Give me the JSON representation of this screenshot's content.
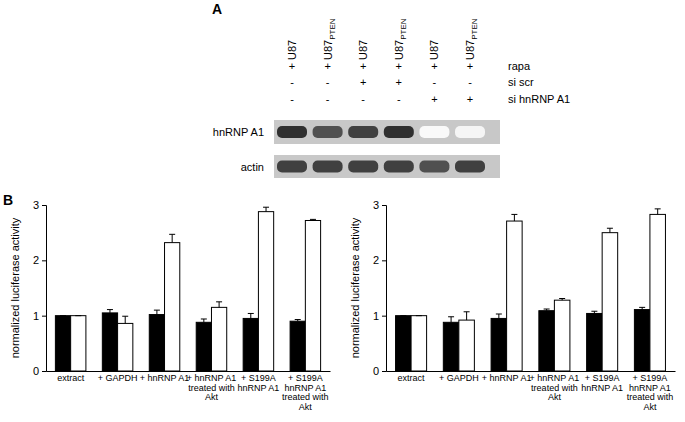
{
  "panel_a": {
    "label": "A",
    "lanes": [
      {
        "label": "U87"
      },
      {
        "label": "U87",
        "subscript": "PTEN"
      },
      {
        "label": "U87"
      },
      {
        "label": "U87",
        "subscript": "PTEN"
      },
      {
        "label": "U87"
      },
      {
        "label": "U87",
        "subscript": "PTEN"
      }
    ],
    "treatments": [
      {
        "label": "rapa",
        "values": [
          "+",
          "+",
          "+",
          "+",
          "+",
          "+"
        ]
      },
      {
        "label": "si scr",
        "values": [
          "-",
          "-",
          "+",
          "+",
          "-",
          "-"
        ]
      },
      {
        "label": "si hnRNP A1",
        "values": [
          "-",
          "-",
          "-",
          "-",
          "+",
          "+"
        ]
      }
    ],
    "blot": [
      {
        "label": "hnRNP A1",
        "intensity": [
          0.85,
          0.75,
          0.8,
          0.85,
          0.05,
          0.08
        ]
      },
      {
        "label": "actin",
        "intensity": [
          0.8,
          0.8,
          0.8,
          0.8,
          0.75,
          0.8
        ]
      }
    ]
  },
  "panel_b": {
    "label": "B"
  },
  "chart_data": [
    {
      "type": "bar",
      "ylabel": "normalized luciferase activity",
      "categories": [
        "extract",
        "+ GAPDH",
        "+ hnRNP A1",
        "+ hnRNP A1 treated with Akt",
        "+ S199A hnRNP A1",
        "+ S199A hnRNP A1 treated with Akt"
      ],
      "series": [
        {
          "color": "#000000",
          "values": [
            1,
            1.05,
            1.02,
            0.88,
            0.95,
            0.9
          ],
          "errors": [
            0,
            0.06,
            0.08,
            0.06,
            0.09,
            0.03
          ]
        },
        {
          "color": "#ffffff",
          "values": [
            1,
            0.86,
            2.32,
            1.15,
            2.88,
            2.72
          ],
          "errors": [
            0,
            0.13,
            0.15,
            0.1,
            0.08,
            0.02
          ]
        }
      ],
      "ylim": [
        0,
        3
      ],
      "yticks": [
        0,
        1,
        2,
        3
      ]
    },
    {
      "type": "bar",
      "ylabel": "normalized luciferase activity",
      "categories": [
        "extract",
        "+ GAPDH",
        "+ hnRNP A1",
        "+ hnRNP A1 treated with Akt",
        "+ S199A hnRNP A1",
        "+ S199A hnRNP A1 treated with Akt"
      ],
      "series": [
        {
          "color": "#000000",
          "values": [
            1,
            0.88,
            0.95,
            1.09,
            1.04,
            1.11
          ],
          "errors": [
            0,
            0.1,
            0.08,
            0.03,
            0.04,
            0.04
          ]
        },
        {
          "color": "#ffffff",
          "values": [
            1,
            0.92,
            2.71,
            1.28,
            2.5,
            2.83
          ],
          "errors": [
            0,
            0.15,
            0.12,
            0.03,
            0.08,
            0.1
          ]
        }
      ],
      "ylim": [
        0,
        3
      ],
      "yticks": [
        0,
        1,
        2,
        3
      ]
    }
  ]
}
